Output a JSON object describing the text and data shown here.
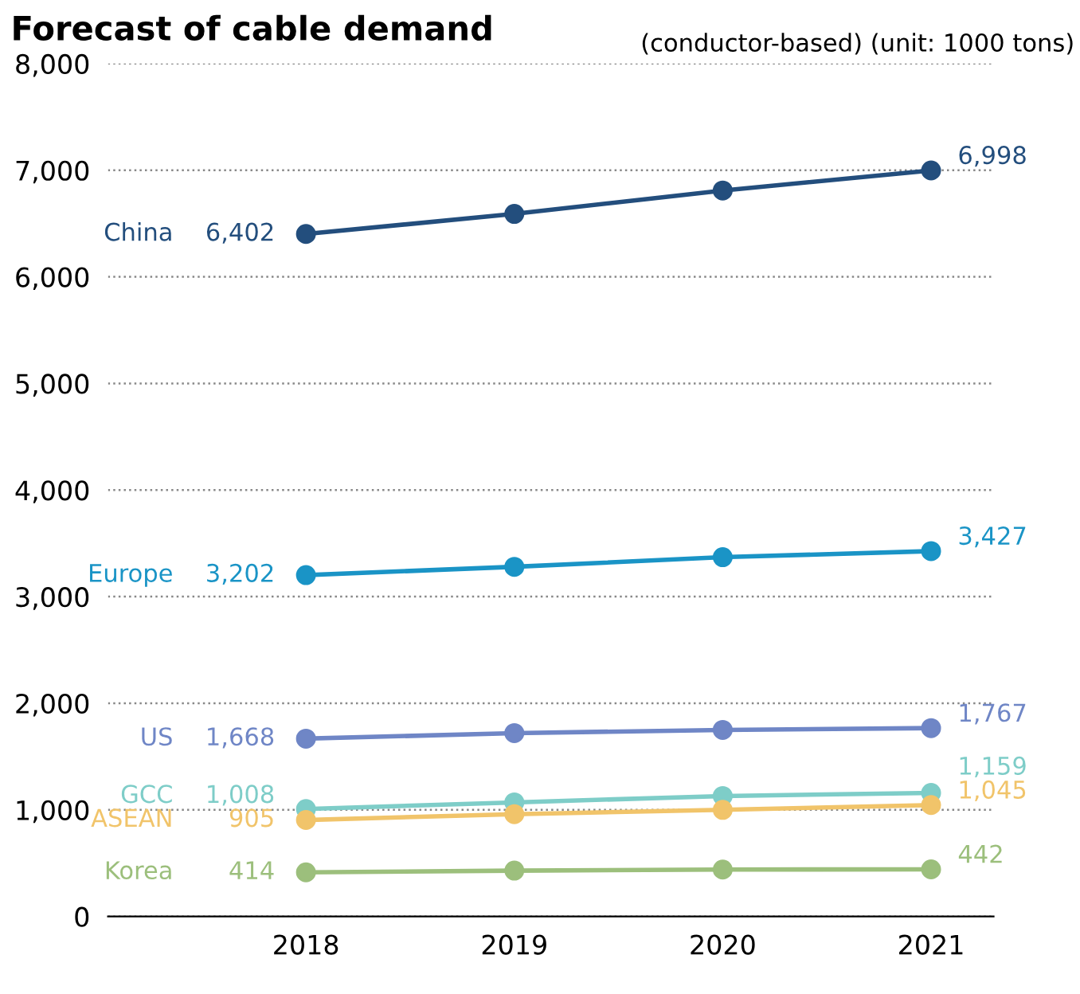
{
  "chart_data": {
    "type": "line",
    "title": "Forecast of cable demand",
    "annotations": [
      "(conductor-based) (unit: 1000 tons)"
    ],
    "categories": [
      "2018",
      "2019",
      "2020",
      "2021"
    ],
    "series": [
      {
        "name": "China",
        "color": "#234e7d",
        "values": [
          6402,
          6590,
          6810,
          6998
        ],
        "value_labels": [
          "6,402",
          null,
          null,
          "6,998"
        ]
      },
      {
        "name": "Europe",
        "color": "#1a94c6",
        "values": [
          3202,
          3280,
          3370,
          3427
        ],
        "value_labels": [
          "3,202",
          null,
          null,
          "3,427"
        ]
      },
      {
        "name": "US",
        "color": "#6f86c6",
        "values": [
          1668,
          1720,
          1750,
          1767
        ],
        "value_labels": [
          "1,668",
          null,
          null,
          "1,767"
        ]
      },
      {
        "name": "GCC",
        "color": "#7ecdc8",
        "values": [
          1008,
          1070,
          1130,
          1159
        ],
        "value_labels": [
          "1,008",
          null,
          null,
          "1,159"
        ]
      },
      {
        "name": "ASEAN",
        "color": "#f1c46a",
        "values": [
          905,
          960,
          1000,
          1045
        ],
        "value_labels": [
          "905",
          null,
          null,
          "1,045"
        ]
      },
      {
        "name": "Korea",
        "color": "#9cbf7c",
        "values": [
          414,
          430,
          440,
          442
        ],
        "value_labels": [
          "414",
          null,
          null,
          "442"
        ]
      }
    ],
    "ylim": [
      0,
      8000
    ],
    "yticks": [
      {
        "value": 0,
        "label": "0"
      },
      {
        "value": 1000,
        "label": "1,000"
      },
      {
        "value": 2000,
        "label": "2,000"
      },
      {
        "value": 3000,
        "label": "3,000"
      },
      {
        "value": 4000,
        "label": "4,000"
      },
      {
        "value": 5000,
        "label": "5,000"
      },
      {
        "value": 6000,
        "label": "6,000"
      },
      {
        "value": 7000,
        "label": "7,000"
      },
      {
        "value": 8000,
        "label": "8,000"
      }
    ],
    "grid": "y",
    "marker": "circle",
    "line_style": "solid",
    "legend": false
  }
}
